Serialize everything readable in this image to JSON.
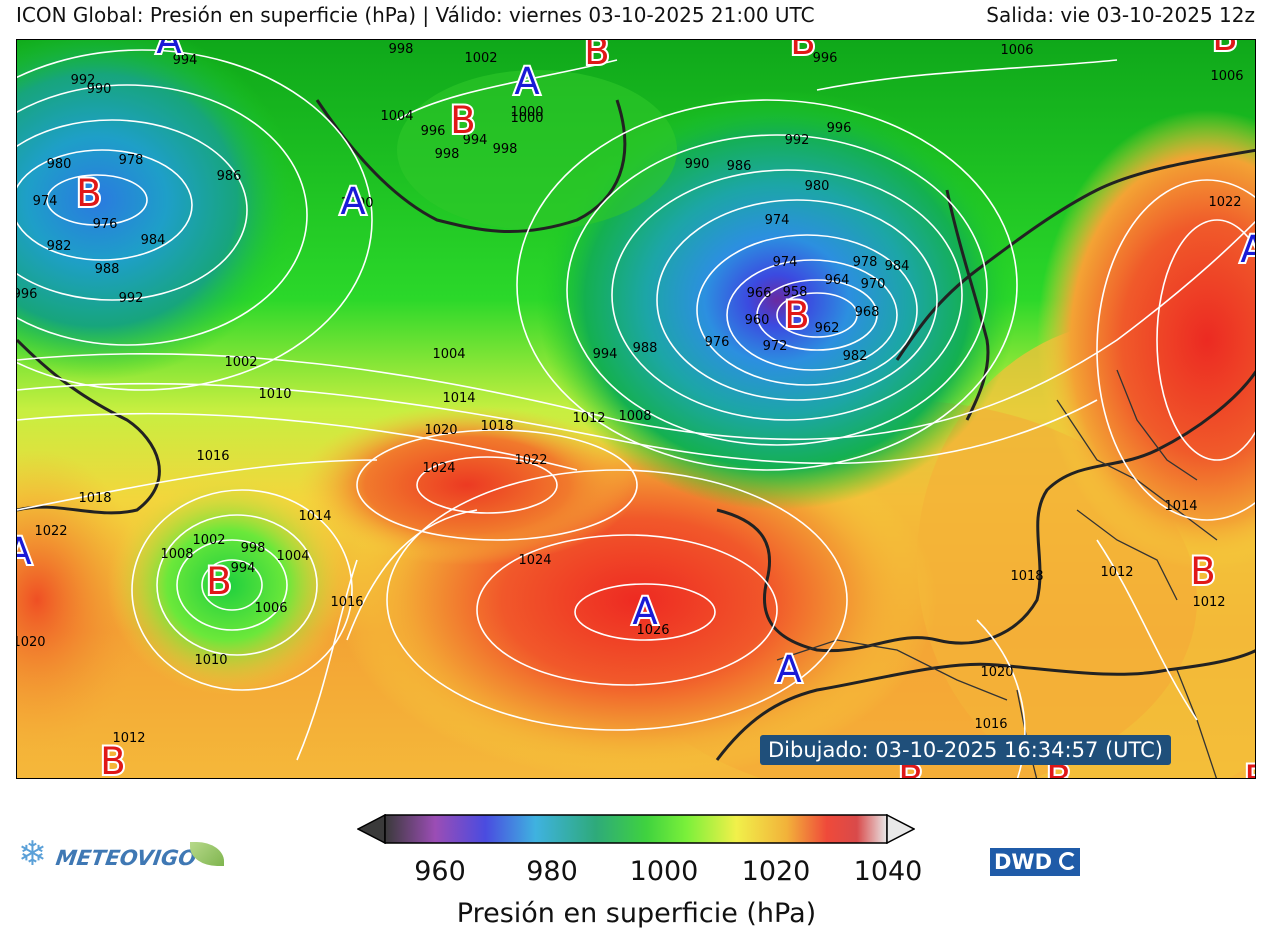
{
  "header": {
    "title_left": "ICON Global: Presión en superficie (hPa) | Válido: viernes 03-10-2025 21:00 UTC",
    "title_right": "Salida: vie 03-10-2025 12z"
  },
  "map": {
    "drawn_label": "Dibujado: 03-10-2025 16:34:57 (UTC)",
    "centers": [
      {
        "type": "A",
        "id": "high-labrador"
      },
      {
        "type": "A",
        "id": "high-greenland-north"
      },
      {
        "type": "A",
        "id": "high-greenland"
      },
      {
        "type": "A",
        "id": "high-azores"
      },
      {
        "type": "A",
        "id": "high-morocco"
      },
      {
        "type": "A",
        "id": "high-west-edge"
      },
      {
        "type": "A",
        "id": "high-russia"
      },
      {
        "type": "B",
        "id": "low-hudson"
      },
      {
        "type": "B",
        "id": "low-baffin"
      },
      {
        "type": "B",
        "id": "low-iceland"
      },
      {
        "type": "B",
        "id": "low-north-1"
      },
      {
        "type": "B",
        "id": "low-north-2"
      },
      {
        "type": "B",
        "id": "low-northeast"
      },
      {
        "type": "B",
        "id": "low-atlantic"
      },
      {
        "type": "B",
        "id": "low-southwest"
      },
      {
        "type": "B",
        "id": "low-greece"
      },
      {
        "type": "B",
        "id": "low-south-1"
      },
      {
        "type": "B",
        "id": "low-south-2"
      },
      {
        "type": "B",
        "id": "low-south-3"
      }
    ],
    "isobar_labels": [
      "992",
      "990",
      "994",
      "998",
      "1002",
      "1000",
      "996",
      "1004",
      "998",
      "994",
      "1000",
      "996",
      "998",
      "980",
      "978",
      "986",
      "974",
      "976",
      "984",
      "982",
      "988",
      "996",
      "992",
      "1002",
      "1010",
      "1004",
      "1014",
      "1018",
      "1012",
      "1008",
      "994",
      "988",
      "990",
      "986",
      "992",
      "996",
      "980",
      "974",
      "974",
      "978",
      "984",
      "964",
      "970",
      "966",
      "958",
      "960",
      "968",
      "976",
      "972",
      "962",
      "982",
      "1006",
      "1022",
      "1016",
      "1020",
      "1024",
      "1022",
      "1018",
      "1022",
      "1020",
      "1008",
      "1002",
      "998",
      "1004",
      "1014",
      "1006",
      "1010",
      "994",
      "1024",
      "1016",
      "1026",
      "1014",
      "1018",
      "1012",
      "1012",
      "1020",
      "1016",
      "1012",
      "1000",
      "1006"
    ],
    "colors": {
      "ocean_low": "#2fa5c8",
      "mid": "#1ecf1e",
      "high": "#f4e23a",
      "very_high": "#e7312a"
    }
  },
  "colorbar": {
    "ticks": [
      "960",
      "980",
      "1000",
      "1020",
      "1040"
    ],
    "label": "Presión en superficie (hPa)",
    "stops": [
      "#3a3a3a",
      "#9b4db5",
      "#4a4ce0",
      "#3fb2e0",
      "#2eaa7a",
      "#3fd23f",
      "#7af03a",
      "#f1f04a",
      "#f2b23a",
      "#ef4a3a",
      "#d94a4a",
      "#e8e8e8"
    ]
  },
  "logos": {
    "left": "METEOVIGO",
    "right": "DWD"
  }
}
